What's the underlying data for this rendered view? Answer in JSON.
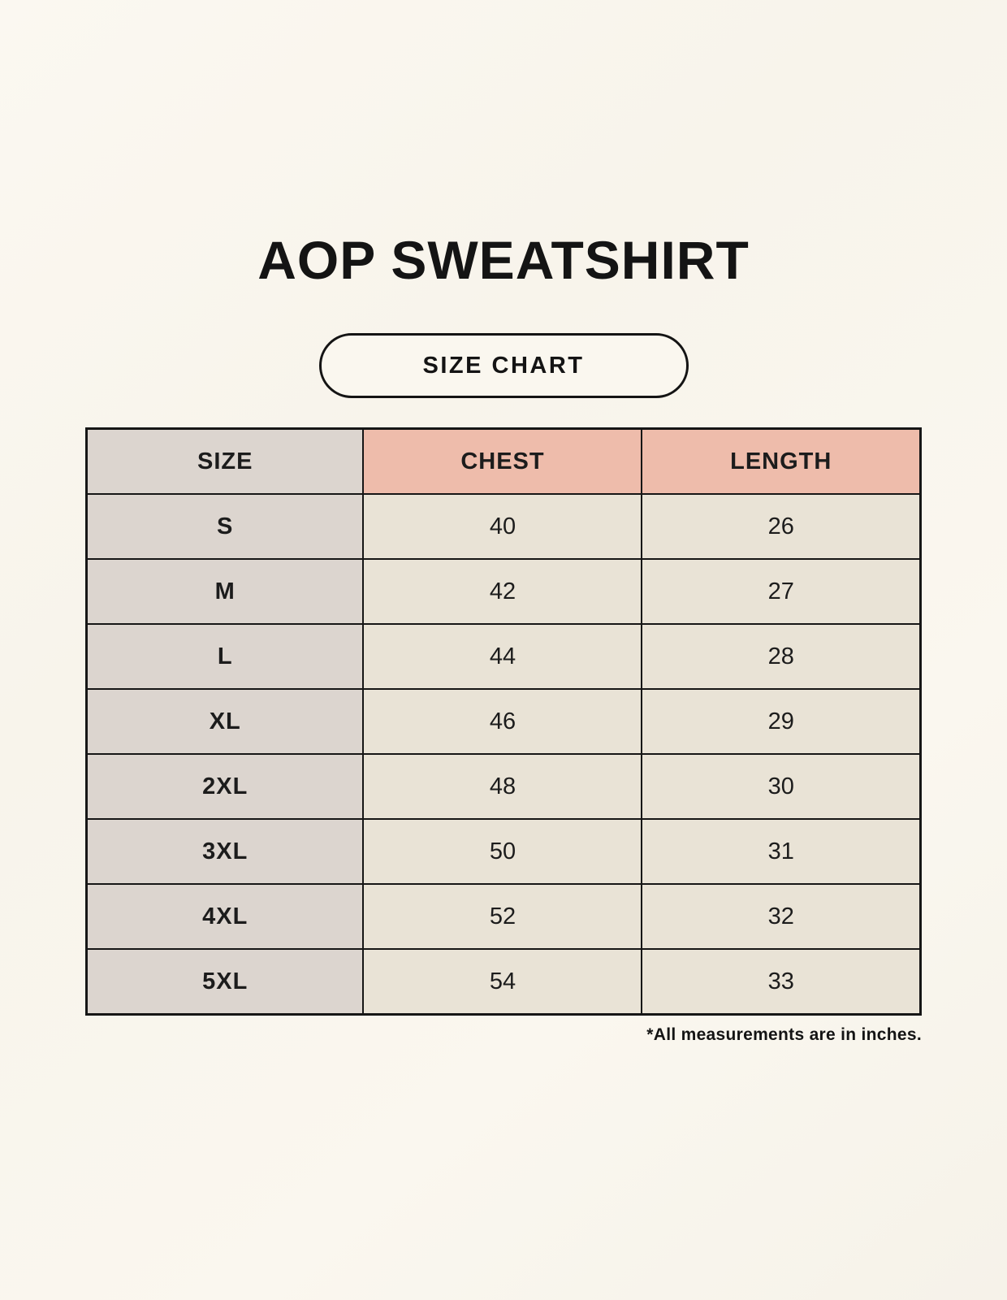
{
  "header": {
    "title": "AOP SWEATSHIRT",
    "badge": "SIZE CHART"
  },
  "footnote": "*All measurements are in inches.",
  "chart_data": {
    "type": "table",
    "title": "AOP SWEATSHIRT SIZE CHART",
    "columns": [
      "SIZE",
      "CHEST",
      "LENGTH"
    ],
    "rows": [
      {
        "size": "S",
        "chest": "40",
        "length": "26"
      },
      {
        "size": "M",
        "chest": "42",
        "length": "27"
      },
      {
        "size": "L",
        "chest": "44",
        "length": "28"
      },
      {
        "size": "XL",
        "chest": "46",
        "length": "29"
      },
      {
        "size": "2XL",
        "chest": "48",
        "length": "30"
      },
      {
        "size": "3XL",
        "chest": "50",
        "length": "31"
      },
      {
        "size": "4XL",
        "chest": "52",
        "length": "32"
      },
      {
        "size": "5XL",
        "chest": "54",
        "length": "33"
      }
    ],
    "units": "inches",
    "layout": {
      "grid": true,
      "header_accent": true
    }
  },
  "colors": {
    "background": "#f8f4eb",
    "header_accent_pink": "#eebcab",
    "size_column_gray": "#dcd5cf",
    "cell_cream": "#e9e3d6",
    "border_black": "#161616",
    "text": "#1a1a1a"
  }
}
